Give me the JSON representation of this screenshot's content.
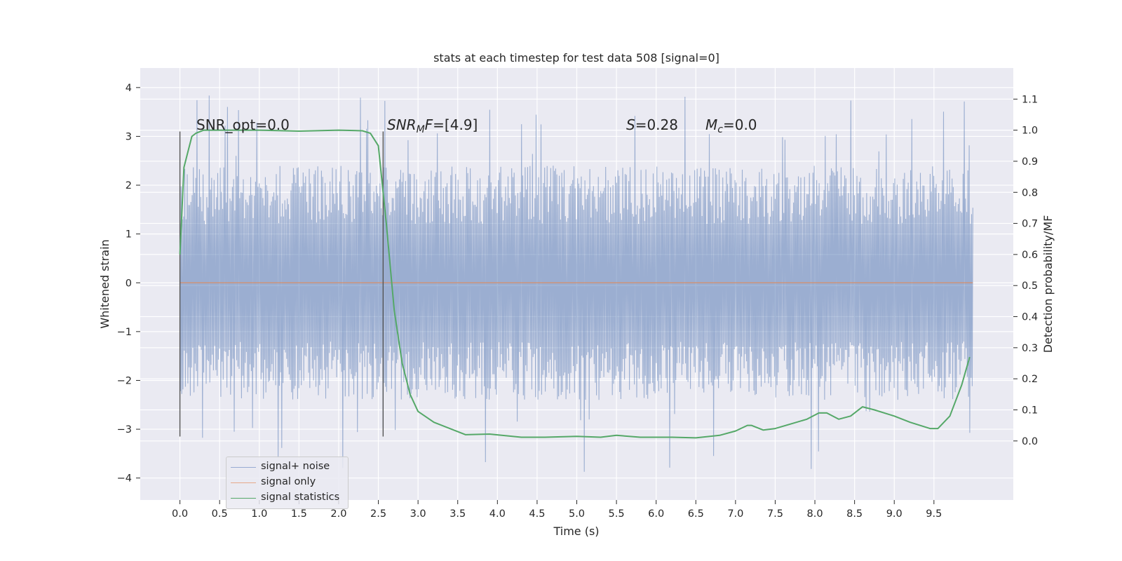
{
  "chart_data": {
    "type": "line",
    "title": "stats at each timestep for test data 508 [signal=0]",
    "xlabel": "Time (s)",
    "ylabel": "Whitened strain",
    "y2label": "Detection probability/MF",
    "xlim": [
      -0.5,
      10.5
    ],
    "ylim": [
      -4.45,
      4.4
    ],
    "y2lim": [
      -0.19,
      1.2
    ],
    "x_ticks": [
      0.0,
      0.5,
      1.0,
      1.5,
      2.0,
      2.5,
      3.0,
      3.5,
      4.0,
      4.5,
      5.0,
      5.5,
      6.0,
      6.5,
      7.0,
      7.5,
      8.0,
      8.5,
      9.0,
      9.5
    ],
    "x_tick_labels": [
      "0.0",
      "0.5",
      "1.0",
      "1.5",
      "2.0",
      "2.5",
      "3.0",
      "3.5",
      "4.0",
      "4.5",
      "5.0",
      "5.5",
      "6.0",
      "6.5",
      "7.0",
      "7.5",
      "8.0",
      "8.5",
      "9.0",
      "9.5"
    ],
    "y_ticks": [
      -4,
      -3,
      -2,
      -1,
      0,
      1,
      2,
      3,
      4
    ],
    "y_tick_labels": [
      "−4",
      "−3",
      "−2",
      "−1",
      "0",
      "1",
      "2",
      "3",
      "4"
    ],
    "y2_ticks": [
      0.0,
      0.1,
      0.2,
      0.3,
      0.4,
      0.5,
      0.6,
      0.7,
      0.8,
      0.9,
      1.0,
      1.1
    ],
    "y2_tick_labels": [
      "0.0",
      "0.1",
      "0.2",
      "0.3",
      "0.4",
      "0.5",
      "0.6",
      "0.7",
      "0.8",
      "0.9",
      "1.0",
      "1.1"
    ],
    "grid": true,
    "legend_position": "lower-left",
    "series": [
      {
        "name": "signal+ noise",
        "color": "#4c72b0",
        "axis": "left",
        "x_range": [
          0.0,
          9.99
        ],
        "y_range_typical": [
          -2.5,
          2.5
        ],
        "y_extremes": [
          -4.05,
          4.0
        ]
      },
      {
        "name": "signal only",
        "color": "#dd8452",
        "axis": "left",
        "x": [
          0.0,
          9.99
        ],
        "y": [
          0.0,
          0.0
        ]
      },
      {
        "name": "signal statistics",
        "color": "#55a868",
        "axis": "right",
        "x": [
          0.0,
          0.05,
          0.1,
          0.15,
          0.2,
          0.3,
          0.5,
          1.0,
          1.5,
          2.0,
          2.3,
          2.4,
          2.5,
          2.6,
          2.7,
          2.8,
          2.9,
          3.0,
          3.2,
          3.4,
          3.6,
          3.9,
          4.3,
          4.6,
          5.0,
          5.3,
          5.5,
          5.8,
          6.2,
          6.5,
          6.8,
          7.0,
          7.15,
          7.2,
          7.35,
          7.5,
          7.7,
          7.9,
          8.05,
          8.15,
          8.3,
          8.45,
          8.6,
          8.75,
          9.0,
          9.2,
          9.45,
          9.55,
          9.7,
          9.85,
          9.95
        ],
        "y": [
          0.6,
          0.88,
          0.93,
          0.98,
          0.99,
          1.0,
          1.0,
          1.0,
          0.997,
          1.0,
          0.998,
          0.99,
          0.95,
          0.7,
          0.42,
          0.25,
          0.15,
          0.095,
          0.06,
          0.04,
          0.02,
          0.022,
          0.012,
          0.012,
          0.015,
          0.012,
          0.018,
          0.012,
          0.012,
          0.01,
          0.018,
          0.032,
          0.05,
          0.05,
          0.035,
          0.04,
          0.055,
          0.07,
          0.09,
          0.09,
          0.07,
          0.08,
          0.11,
          0.1,
          0.08,
          0.06,
          0.04,
          0.04,
          0.08,
          0.18,
          0.27
        ]
      }
    ],
    "vlines": [
      {
        "x": 0.0,
        "y_range": [
          -3.15,
          3.1
        ]
      },
      {
        "x": 2.56,
        "y_range": [
          -3.15,
          3.1
        ]
      }
    ],
    "annotations": {
      "snr_opt": "SNR_opt=0.0",
      "snr_mf_base": "SNR",
      "snr_mf_sub": "M",
      "snr_mf_rest": "F",
      "snr_mf_value": "=[4.9]",
      "s_sym": "S",
      "s_value": "=0.28",
      "mc_sym": "M",
      "mc_sub": "c",
      "mc_value": "=0.0"
    }
  }
}
